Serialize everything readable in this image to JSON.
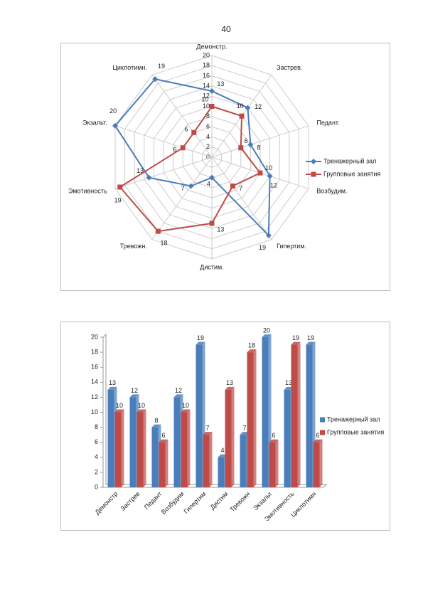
{
  "page_number": 40,
  "chart_data": [
    {
      "type": "radar",
      "categories": [
        "Демонстр.",
        "Застрев.",
        "Педант.",
        "Возбудим.",
        "Гипертим.",
        "Дистим.",
        "Тревожн.",
        "Эмотивность",
        "Экзальт.",
        "Циклотимн."
      ],
      "series": [
        {
          "name": "Тренажерный зал",
          "color": "#4a7ebb",
          "values": [
            13,
            12,
            8,
            12,
            19,
            4,
            7,
            13,
            20,
            19
          ]
        },
        {
          "name": "Групповые занятия",
          "color": "#be4b48",
          "values": [
            10,
            10,
            6,
            10,
            7,
            13,
            18,
            19,
            6,
            6
          ]
        }
      ],
      "ylim": [
        0,
        20
      ],
      "yticks": [
        0,
        2,
        4,
        6,
        8,
        10,
        12,
        14,
        16,
        18,
        20
      ],
      "grid": true,
      "legend": "right"
    },
    {
      "type": "bar3d",
      "categories": [
        "Демонстр",
        "Застрев",
        "Педант",
        "Возбудим",
        "Гипертим",
        "Дистим",
        "Тревожн",
        "Экзальт",
        "Эмотивность",
        "Циклотимн"
      ],
      "series": [
        {
          "name": "Тренажерный зал",
          "color": "#4a7ebb",
          "values": [
            13,
            12,
            8,
            12,
            19,
            4,
            7,
            20,
            13,
            19
          ]
        },
        {
          "name": "Групповые занятия",
          "color": "#be4b48",
          "values": [
            10,
            10,
            6,
            10,
            7,
            13,
            18,
            6,
            19,
            6
          ]
        }
      ],
      "ylim": [
        0,
        20
      ],
      "yticks": [
        0,
        2,
        4,
        6,
        8,
        10,
        12,
        14,
        16,
        18,
        20
      ],
      "grid": false,
      "legend": "right"
    }
  ]
}
